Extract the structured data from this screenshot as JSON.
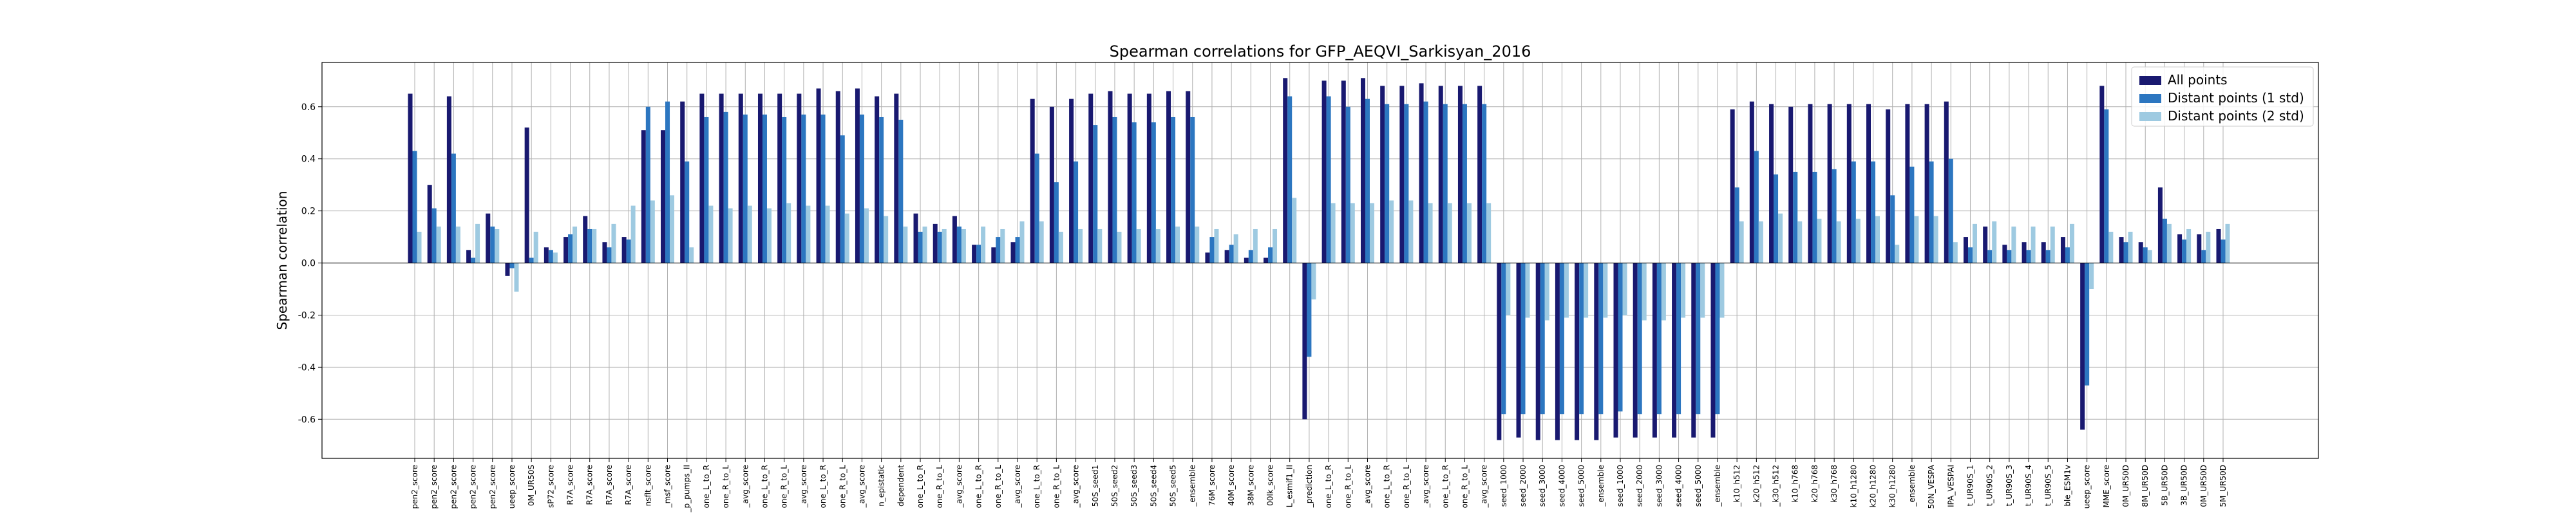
{
  "chart_data": {
    "type": "bar",
    "title": "Spearman correlations for GFP_AEQVI_Sarkisyan_2016",
    "xlabel": "",
    "ylabel": "Spearman correlation",
    "ylim": [
      -0.75,
      0.77
    ],
    "yticks": [
      -0.6,
      -0.4,
      -0.2,
      0.0,
      0.2,
      0.4,
      0.6
    ],
    "grid": true,
    "legend_position": "top-right",
    "categories": [
      "pen2_score",
      "pen2_score",
      "pen2_score",
      "pen2_score",
      "pen2_score",
      "ueep_score",
      "0M_UR50S",
      "sP72_score",
      "R7A_score",
      "R7A_score",
      "R7A_score",
      "R7A_score",
      "nsflt_score",
      "_msf_score",
      "_p_pumps_II",
      "one_L_to_R",
      "one_R_to_L",
      "_avg_score",
      "one_L_to_R",
      "one_R_to_L",
      "_avg_score",
      "one_L_to_R",
      "one_R_to_L",
      "_avg_score",
      "n_epistatic",
      "dependent",
      "one_L_to_R",
      "one_R_to_L",
      "_avg_score",
      "one_L_to_R",
      "one_R_to_L",
      "_avg_score",
      "one_L_to_R",
      "one_R_to_L",
      "_avg_score",
      "50S_seed1",
      "50S_seed2",
      "50S_seed3",
      "50S_seed4",
      "50S_seed5",
      "_ensemble",
      "76M_score",
      "40M_score",
      "38M_score",
      "00lk_score",
      "L_esmif1_II",
      "_prediction",
      "one_L_to_R",
      "one_R_to_L",
      "_avg_score",
      "one_L_to_R",
      "one_R_to_L",
      "_avg_score",
      "one_L_to_R",
      "one_R_to_L",
      "_avg_score",
      "seed_1000",
      "seed_2000",
      "seed_3000",
      "seed_4000",
      "seed_5000",
      "_ensemble",
      "seed_1000",
      "seed_2000",
      "seed_3000",
      "seed_4000",
      "seed_5000",
      "_ensemble",
      "_k10_h512",
      "_k20_h512",
      "_k30_h512",
      "k10_h768",
      "k20_h768",
      "k30_h768",
      "k10_h1280",
      "k20_h1280",
      "k30_h1280",
      "_ensemble",
      "50N_VESPA",
      "IPA_VESPAI",
      "t_UR90S_1",
      "t_UR90S_2",
      "t_UR90S_3",
      "t_UR90S_4",
      "t_UR90S_5",
      "ble_ESM1v",
      "ueep_score",
      "MME_score",
      "0M_UR50D",
      "8M_UR50D",
      "5B_UR50D",
      "3B_UR50D",
      "0M_UR50D",
      "5M_UR50D"
    ],
    "series": [
      {
        "name": "All points",
        "color": "#191970",
        "values": [
          0.65,
          0.3,
          0.64,
          0.05,
          0.19,
          -0.05,
          0.52,
          0.06,
          0.1,
          0.18,
          0.08,
          0.1,
          0.51,
          0.51,
          0.62,
          0.65,
          0.65,
          0.65,
          0.65,
          0.65,
          0.65,
          0.67,
          0.66,
          0.67,
          0.64,
          0.65,
          0.19,
          0.15,
          0.18,
          0.07,
          0.06,
          0.08,
          0.63,
          0.6,
          0.63,
          0.65,
          0.66,
          0.65,
          0.65,
          0.66,
          0.66,
          0.04,
          0.05,
          0.02,
          0.02,
          0.71,
          -0.6,
          0.7,
          0.7,
          0.71,
          0.68,
          0.68,
          0.69,
          0.68,
          0.68,
          0.68,
          -0.68,
          -0.67,
          -0.68,
          -0.68,
          -0.68,
          -0.68,
          -0.67,
          -0.67,
          -0.67,
          -0.67,
          -0.67,
          -0.67,
          0.59,
          0.62,
          0.61,
          0.6,
          0.61,
          0.61,
          0.61,
          0.61,
          0.59,
          0.61,
          0.61,
          0.62,
          0.1,
          0.14,
          0.07,
          0.08,
          0.08,
          0.1,
          -0.64,
          0.68,
          0.1,
          0.08,
          0.29,
          0.11,
          0.11,
          0.13
        ]
      },
      {
        "name": "Distant points (1 std)",
        "color": "#2c76c0",
        "values": [
          0.43,
          0.21,
          0.42,
          0.02,
          0.14,
          -0.02,
          0.02,
          0.05,
          0.11,
          0.13,
          0.06,
          0.09,
          0.6,
          0.62,
          0.39,
          0.56,
          0.58,
          0.57,
          0.57,
          0.56,
          0.57,
          0.57,
          0.49,
          0.57,
          0.56,
          0.55,
          0.12,
          0.12,
          0.14,
          0.07,
          0.1,
          0.1,
          0.42,
          0.31,
          0.39,
          0.53,
          0.56,
          0.54,
          0.54,
          0.56,
          0.56,
          0.1,
          0.07,
          0.05,
          0.06,
          0.64,
          -0.36,
          0.64,
          0.6,
          0.63,
          0.61,
          0.61,
          0.62,
          0.61,
          0.61,
          0.61,
          -0.58,
          -0.58,
          -0.58,
          -0.58,
          -0.58,
          -0.58,
          -0.57,
          -0.58,
          -0.58,
          -0.58,
          -0.58,
          -0.58,
          0.29,
          0.43,
          0.34,
          0.35,
          0.35,
          0.36,
          0.39,
          0.39,
          0.26,
          0.37,
          0.39,
          0.4,
          0.06,
          0.05,
          0.05,
          0.05,
          0.05,
          0.06,
          -0.47,
          0.59,
          0.08,
          0.06,
          0.17,
          0.09,
          0.05,
          0.09
        ]
      },
      {
        "name": "Distant points (2 std)",
        "color": "#9ecae1",
        "values": [
          0.12,
          0.14,
          0.14,
          0.15,
          0.13,
          -0.11,
          0.12,
          0.04,
          0.14,
          0.13,
          0.15,
          0.22,
          0.24,
          0.26,
          0.06,
          0.22,
          0.21,
          0.22,
          0.21,
          0.23,
          0.22,
          0.22,
          0.19,
          0.21,
          0.18,
          0.14,
          0.14,
          0.13,
          0.13,
          0.14,
          0.13,
          0.16,
          0.16,
          0.12,
          0.13,
          0.13,
          0.12,
          0.13,
          0.13,
          0.14,
          0.14,
          0.13,
          0.11,
          0.13,
          0.13,
          0.25,
          -0.14,
          0.23,
          0.23,
          0.23,
          0.24,
          0.24,
          0.23,
          0.23,
          0.23,
          0.23,
          -0.2,
          -0.21,
          -0.22,
          -0.21,
          -0.21,
          -0.21,
          -0.2,
          -0.22,
          -0.22,
          -0.21,
          -0.21,
          -0.21,
          0.16,
          0.16,
          0.19,
          0.16,
          0.17,
          0.16,
          0.17,
          0.18,
          0.07,
          0.18,
          0.18,
          0.08,
          0.15,
          0.16,
          0.14,
          0.14,
          0.14,
          0.15,
          -0.1,
          0.12,
          0.12,
          0.05,
          0.15,
          0.13,
          0.12,
          0.15
        ]
      }
    ]
  }
}
